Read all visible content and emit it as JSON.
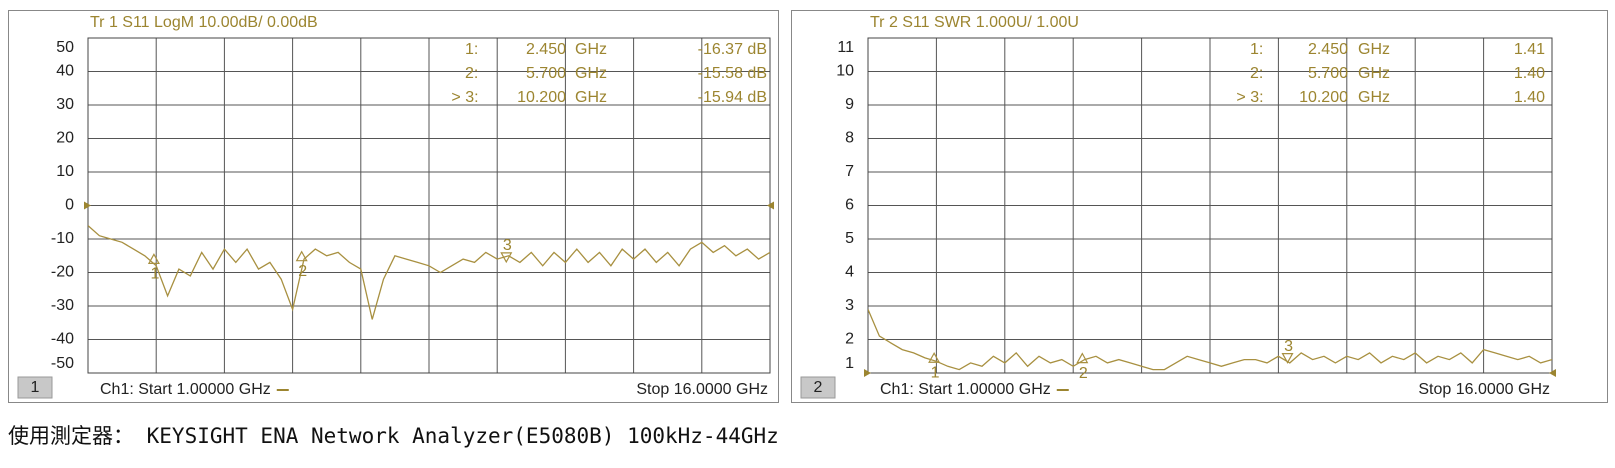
{
  "chart_data": [
    {
      "type": "line",
      "header": "Tr 1  S11 LogM 10.00dB/  0.00dB",
      "channel": "1",
      "start": "Ch1:  Start  1.00000 GHz",
      "stop": "Stop  16.0000 GHz",
      "xlim": [
        1,
        16
      ],
      "xticks": [
        1,
        2.5,
        4,
        5.5,
        7,
        8.5,
        10,
        11.5,
        13,
        14.5,
        16
      ],
      "ylim": [
        -50,
        50
      ],
      "yticks": [
        50,
        40,
        30,
        20,
        10,
        0,
        -10,
        -20,
        -30,
        -40,
        -50
      ],
      "grid": true,
      "x": [
        1,
        1.25,
        1.5,
        1.75,
        2,
        2.25,
        2.5,
        2.75,
        3,
        3.25,
        3.5,
        3.75,
        4,
        4.25,
        4.5,
        4.75,
        5,
        5.25,
        5.5,
        5.75,
        6,
        6.25,
        6.5,
        6.75,
        7,
        7.25,
        7.5,
        7.75,
        8,
        8.25,
        8.5,
        8.75,
        9,
        9.25,
        9.5,
        9.75,
        10,
        10.25,
        10.5,
        10.75,
        11,
        11.25,
        11.5,
        11.75,
        12,
        12.25,
        12.5,
        12.75,
        13,
        13.25,
        13.5,
        13.75,
        14,
        14.25,
        14.5,
        14.75,
        15,
        15.25,
        15.5,
        15.75,
        16
      ],
      "series": [
        {
          "color": "#a89040",
          "values": [
            -6,
            -9,
            -10,
            -11,
            -13,
            -15,
            -18,
            -27,
            -19,
            -21,
            -14,
            -19,
            -13,
            -17,
            -13,
            -19,
            -17,
            -22,
            -31,
            -16,
            -13,
            -15,
            -14,
            -17,
            -19,
            -34,
            -22,
            -15,
            -16,
            -17,
            -18,
            -20,
            -18,
            -16,
            -17,
            -14,
            -16,
            -15,
            -17,
            -14,
            -18,
            -14,
            -17,
            -13,
            -17,
            -14,
            -18,
            -13,
            -16,
            -13,
            -17,
            -14,
            -18,
            -13,
            -11,
            -14,
            -12,
            -15,
            -13,
            -16,
            -14
          ]
        }
      ],
      "markers": [
        {
          "id": "1:",
          "tag": "1",
          "x": 2.45,
          "freq": "2.450",
          "unit": "GHz",
          "y": -16.37,
          "reading": "-16.37 dB"
        },
        {
          "id": "2:",
          "tag": "2",
          "x": 5.7,
          "freq": "5.700",
          "unit": "GHz",
          "y": -15.58,
          "reading": "-15.58 dB"
        },
        {
          "id": "> 3:",
          "tag": "3",
          "x": 10.2,
          "freq": "10.200",
          "unit": "GHz",
          "y": -15.94,
          "reading": "-15.94 dB"
        }
      ]
    },
    {
      "type": "line",
      "header": "Tr 2  S11 SWR 1.000U/  1.00U",
      "channel": "2",
      "start": "Ch1:  Start  1.00000 GHz",
      "stop": "Stop  16.0000 GHz",
      "xlim": [
        1,
        16
      ],
      "xticks": [
        1,
        2.5,
        4,
        5.5,
        7,
        8.5,
        10,
        11.5,
        13,
        14.5,
        16
      ],
      "ylim": [
        1,
        11
      ],
      "yticks": [
        11,
        10,
        9,
        8,
        7,
        6,
        5,
        4,
        3,
        2,
        1
      ],
      "grid": true,
      "x": [
        1,
        1.25,
        1.5,
        1.75,
        2,
        2.25,
        2.5,
        2.75,
        3,
        3.25,
        3.5,
        3.75,
        4,
        4.25,
        4.5,
        4.75,
        5,
        5.25,
        5.5,
        5.75,
        6,
        6.25,
        6.5,
        6.75,
        7,
        7.25,
        7.5,
        7.75,
        8,
        8.25,
        8.5,
        8.75,
        9,
        9.25,
        9.5,
        9.75,
        10,
        10.25,
        10.5,
        10.75,
        11,
        11.25,
        11.5,
        11.75,
        12,
        12.25,
        12.5,
        12.75,
        13,
        13.25,
        13.5,
        13.75,
        14,
        14.25,
        14.5,
        14.75,
        15,
        15.25,
        15.5,
        15.75,
        16
      ],
      "series": [
        {
          "color": "#a89040",
          "values": [
            2.9,
            2.1,
            1.9,
            1.7,
            1.6,
            1.45,
            1.35,
            1.2,
            1.1,
            1.3,
            1.2,
            1.5,
            1.3,
            1.6,
            1.2,
            1.5,
            1.3,
            1.4,
            1.2,
            1.4,
            1.5,
            1.3,
            1.4,
            1.3,
            1.2,
            1.1,
            1.1,
            1.3,
            1.5,
            1.4,
            1.3,
            1.2,
            1.3,
            1.4,
            1.4,
            1.3,
            1.5,
            1.3,
            1.6,
            1.4,
            1.5,
            1.3,
            1.5,
            1.4,
            1.6,
            1.3,
            1.5,
            1.4,
            1.6,
            1.3,
            1.5,
            1.4,
            1.6,
            1.3,
            1.7,
            1.6,
            1.5,
            1.4,
            1.5,
            1.3,
            1.4
          ]
        }
      ],
      "markers": [
        {
          "id": "1:",
          "tag": "1",
          "x": 2.45,
          "freq": "2.450",
          "unit": "GHz",
          "y": 1.41,
          "reading": "1.41"
        },
        {
          "id": "2:",
          "tag": "2",
          "x": 5.7,
          "freq": "5.700",
          "unit": "GHz",
          "y": 1.4,
          "reading": "1.40"
        },
        {
          "id": "> 3:",
          "tag": "3",
          "x": 10.2,
          "freq": "10.200",
          "unit": "GHz",
          "y": 1.4,
          "reading": "1.40"
        }
      ]
    }
  ],
  "caption": "使用測定器： KEYSIGHT ENA Network Analyzer(E5080B) 100kHz-44GHz"
}
